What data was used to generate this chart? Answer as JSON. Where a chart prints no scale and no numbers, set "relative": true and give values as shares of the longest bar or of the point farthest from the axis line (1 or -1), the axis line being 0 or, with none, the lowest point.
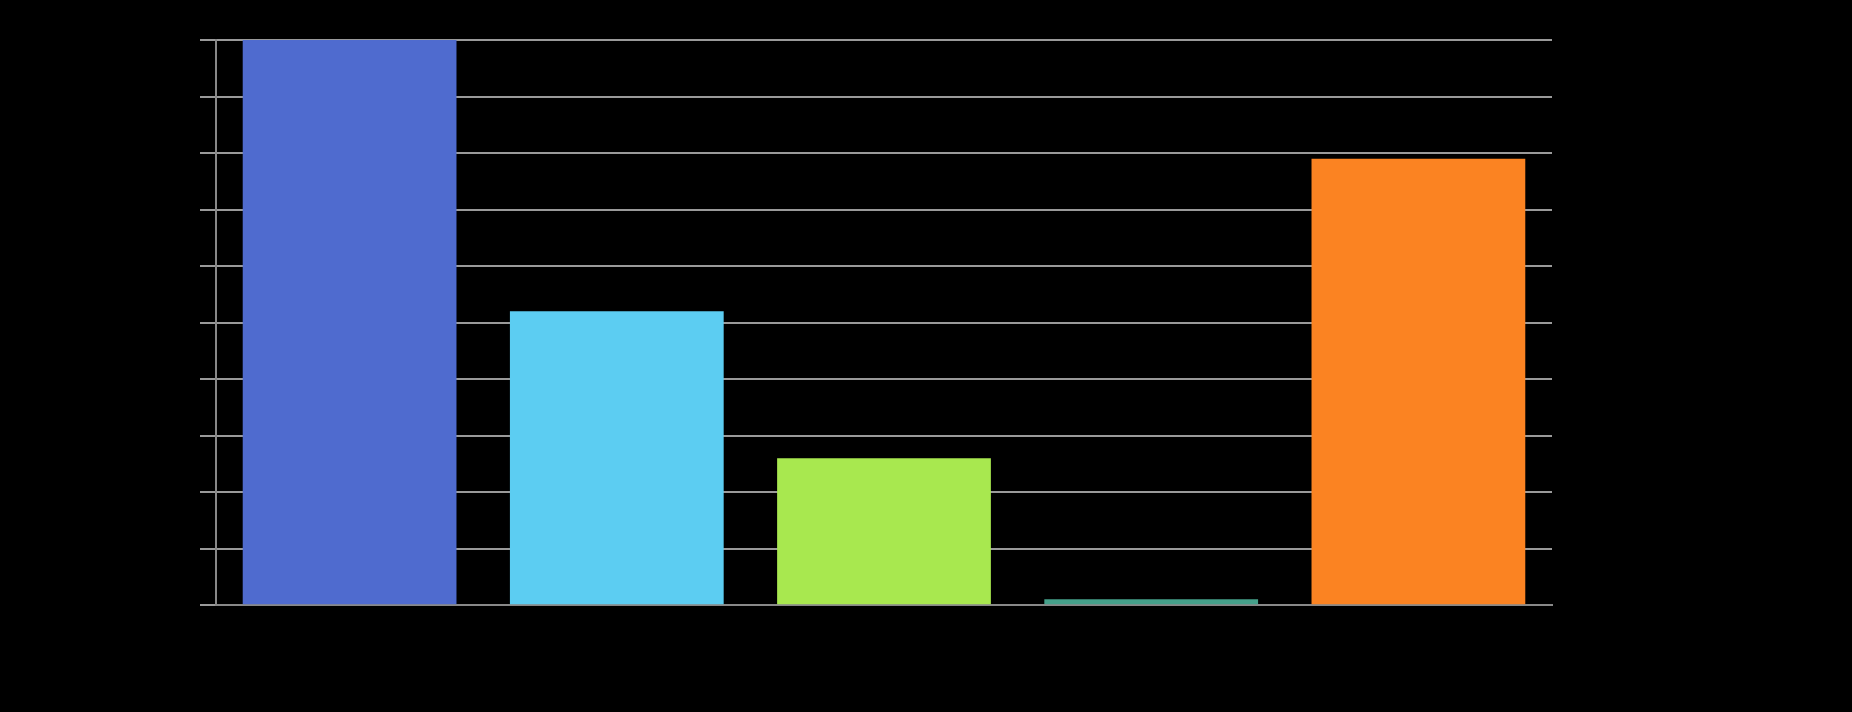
{
  "chart_data": {
    "type": "bar",
    "relative": true,
    "categories": [
      null,
      null,
      null,
      null,
      null
    ],
    "values": [
      1,
      0.52,
      0.26,
      0,
      0.79
    ],
    "colors": [
      "#4f6bcf",
      "#5ccdf2",
      "#a8e84f",
      "#45a08a",
      "#fb8322"
    ],
    "grid": "y"
  }
}
